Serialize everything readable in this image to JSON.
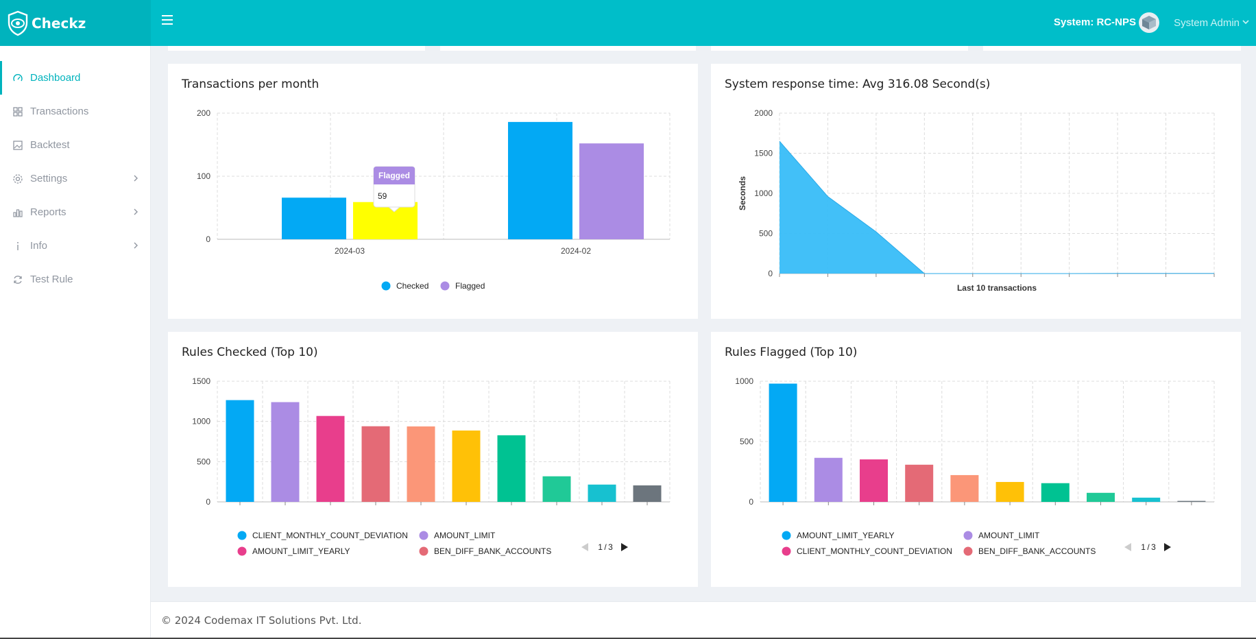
{
  "header": {
    "brand": "Checkz",
    "system": "System: RC-NPS",
    "user": "System Admin"
  },
  "sidebar": {
    "items": [
      {
        "label": "Dashboard",
        "icon": "dashboard-icon",
        "active": true,
        "expandable": false
      },
      {
        "label": "Transactions",
        "icon": "grid-icon",
        "active": false,
        "expandable": false
      },
      {
        "label": "Backtest",
        "icon": "image-icon",
        "active": false,
        "expandable": false
      },
      {
        "label": "Settings",
        "icon": "gear-icon",
        "active": false,
        "expandable": true
      },
      {
        "label": "Reports",
        "icon": "bar-chart-icon",
        "active": false,
        "expandable": true
      },
      {
        "label": "Info",
        "icon": "info-icon",
        "active": false,
        "expandable": true
      },
      {
        "label": "Test Rule",
        "icon": "refresh-icon",
        "active": false,
        "expandable": false
      }
    ]
  },
  "colors": {
    "accent": "#00bec9",
    "blue": "#03a9f4",
    "purple": "#ab8ce4",
    "pink": "#e83e8c",
    "red": "#e46a76",
    "salmon": "#fb9678",
    "amber": "#ffc107",
    "green": "#00c292",
    "mint": "#20c997",
    "cyan": "#17c1d0",
    "slate": "#6c757d",
    "highlight": "#ffff00"
  },
  "cards": {
    "transactions_title": "Transactions per month",
    "response_title": "System response time: Avg 316.08 Second(s)",
    "rules_checked_title": "Rules Checked (Top 10)",
    "rules_flagged_title": "Rules Flagged (Top 10)"
  },
  "tooltip": {
    "title": "Flagged",
    "value": "59"
  },
  "chart_data": [
    {
      "type": "bar",
      "title": "Transactions per month",
      "categories": [
        "2024-03",
        "2024-02"
      ],
      "series": [
        {
          "name": "Checked",
          "values": [
            66,
            186
          ],
          "color": "#03a9f4"
        },
        {
          "name": "Flagged",
          "values": [
            59,
            152
          ],
          "color": "#ab8ce4"
        }
      ],
      "yticks": [
        0,
        100,
        200
      ],
      "ylim": [
        0,
        200
      ],
      "grid": true,
      "legend": "bottom"
    },
    {
      "type": "area",
      "title": "System response time: Avg 316.08 Second(s)",
      "xlabel": "Last 10 transactions",
      "ylabel": "Seconds",
      "values": [
        1650,
        960,
        520,
        0,
        0,
        0,
        0,
        2,
        2,
        2
      ],
      "yticks": [
        0,
        500,
        1000,
        1500,
        2000
      ],
      "ylim": [
        0,
        2000
      ],
      "grid": true,
      "color": "#38bdf8"
    },
    {
      "type": "bar",
      "title": "Rules Checked (Top 10)",
      "values": [
        1265,
        1240,
        1068,
        940,
        938,
        887,
        828,
        318,
        215,
        205
      ],
      "colors": [
        "#03a9f4",
        "#ab8ce4",
        "#e83e8c",
        "#e46a76",
        "#fb9678",
        "#ffc107",
        "#00c292",
        "#20c997",
        "#17c1d0",
        "#6c757d"
      ],
      "yticks": [
        0,
        500,
        1000,
        1500
      ],
      "ylim": [
        0,
        1500
      ],
      "grid": true,
      "legend": [
        "CLIENT_MONTHLY_COUNT_DEVIATION",
        "AMOUNT_LIMIT",
        "AMOUNT_LIMIT_YEARLY",
        "BEN_DIFF_BANK_ACCOUNTS"
      ],
      "legend_colors": [
        "#03a9f4",
        "#ab8ce4",
        "#e83e8c",
        "#e46a76"
      ],
      "page": "1 / 3"
    },
    {
      "type": "bar",
      "title": "Rules Flagged (Top 10)",
      "values": [
        980,
        365,
        352,
        308,
        222,
        165,
        155,
        75,
        35,
        8
      ],
      "colors": [
        "#03a9f4",
        "#ab8ce4",
        "#e83e8c",
        "#e46a76",
        "#fb9678",
        "#ffc107",
        "#00c292",
        "#20c997",
        "#17c1d0",
        "#6c757d"
      ],
      "yticks": [
        0,
        500,
        1000
      ],
      "ylim": [
        0,
        1000
      ],
      "grid": true,
      "legend": [
        "AMOUNT_LIMIT_YEARLY",
        "AMOUNT_LIMIT",
        "CLIENT_MONTHLY_COUNT_DEVIATION",
        "BEN_DIFF_BANK_ACCOUNTS"
      ],
      "legend_colors": [
        "#03a9f4",
        "#ab8ce4",
        "#e83e8c",
        "#e46a76"
      ],
      "page": "1 / 3"
    }
  ],
  "footer": "© 2024 Codemax IT Solutions Pvt. Ltd."
}
